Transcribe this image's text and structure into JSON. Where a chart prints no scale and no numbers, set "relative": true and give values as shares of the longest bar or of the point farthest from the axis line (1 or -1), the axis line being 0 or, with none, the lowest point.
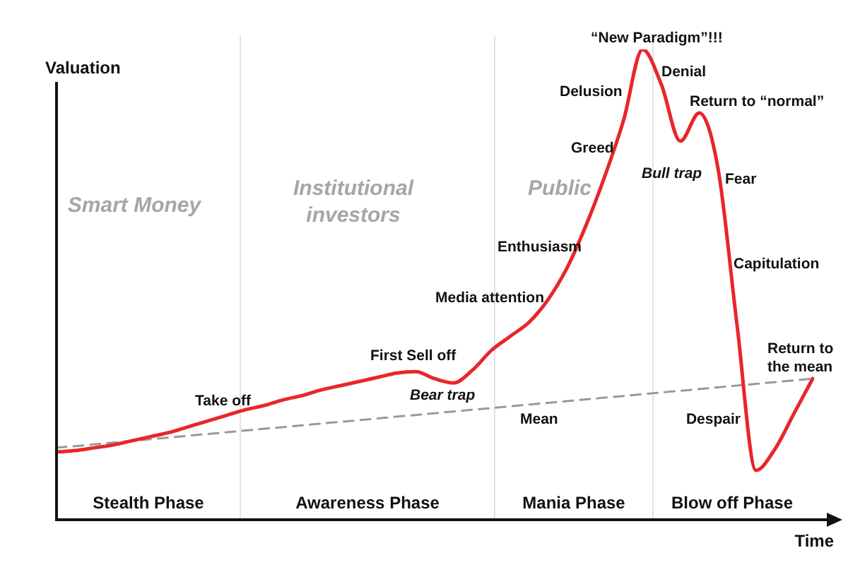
{
  "chart_data": {
    "type": "line",
    "relative": true,
    "xlabel": "Time",
    "ylabel": "Valuation",
    "marker": "none",
    "legend": false,
    "categories": [
      null,
      null,
      null,
      null,
      null,
      null,
      null,
      null,
      null,
      null,
      null,
      null,
      null,
      null,
      null,
      null,
      null,
      null,
      null,
      null,
      null,
      null,
      null,
      null,
      null,
      null,
      null,
      null,
      null,
      null,
      null,
      null,
      null,
      null,
      null,
      null,
      null,
      null,
      null,
      null,
      null
    ],
    "series": [
      {
        "color": "#e8262a",
        "line_style": "solid",
        "values": [
          0.144,
          0.147,
          0.153,
          0.159,
          0.168,
          0.177,
          0.186,
          0.198,
          0.21,
          0.222,
          0.234,
          0.243,
          0.255,
          0.264,
          0.276,
          0.285,
          0.294,
          0.303,
          0.312,
          0.315,
          0.3,
          0.291,
          0.318,
          0.36,
          0.39,
          0.42,
          0.468,
          0.535,
          0.625,
          0.73,
          0.85,
          1,
          0.925,
          0.805,
          0.865,
          0.745,
          0.414,
          0.105,
          0.15,
          0.225,
          0.3
        ]
      },
      {
        "color": "#999999",
        "line_style": "dashed",
        "values": [
          0.153,
          null,
          null,
          null,
          null,
          null,
          null,
          null,
          null,
          null,
          null,
          null,
          null,
          null,
          null,
          null,
          null,
          null,
          null,
          null,
          null,
          null,
          null,
          null,
          null,
          null,
          null,
          null,
          null,
          null,
          null,
          null,
          null,
          null,
          null,
          null,
          null,
          null,
          null,
          null,
          0.3
        ]
      }
    ],
    "annotations": [
      "Stealth Phase",
      "Awareness Phase",
      "Mania Phase",
      "Blow off Phase",
      "Smart Money",
      "Institutional investors",
      "Public",
      "Take off",
      "First Sell off",
      "Bear trap",
      "Mean",
      "Media attention",
      "Enthusiasm",
      "Greed",
      "Delusion",
      "“New Paradigm”!!!",
      "Denial",
      "Bull trap",
      "Return to “normal”",
      "Fear",
      "Capitulation",
      "Despair",
      "Return to the mean"
    ]
  }
}
